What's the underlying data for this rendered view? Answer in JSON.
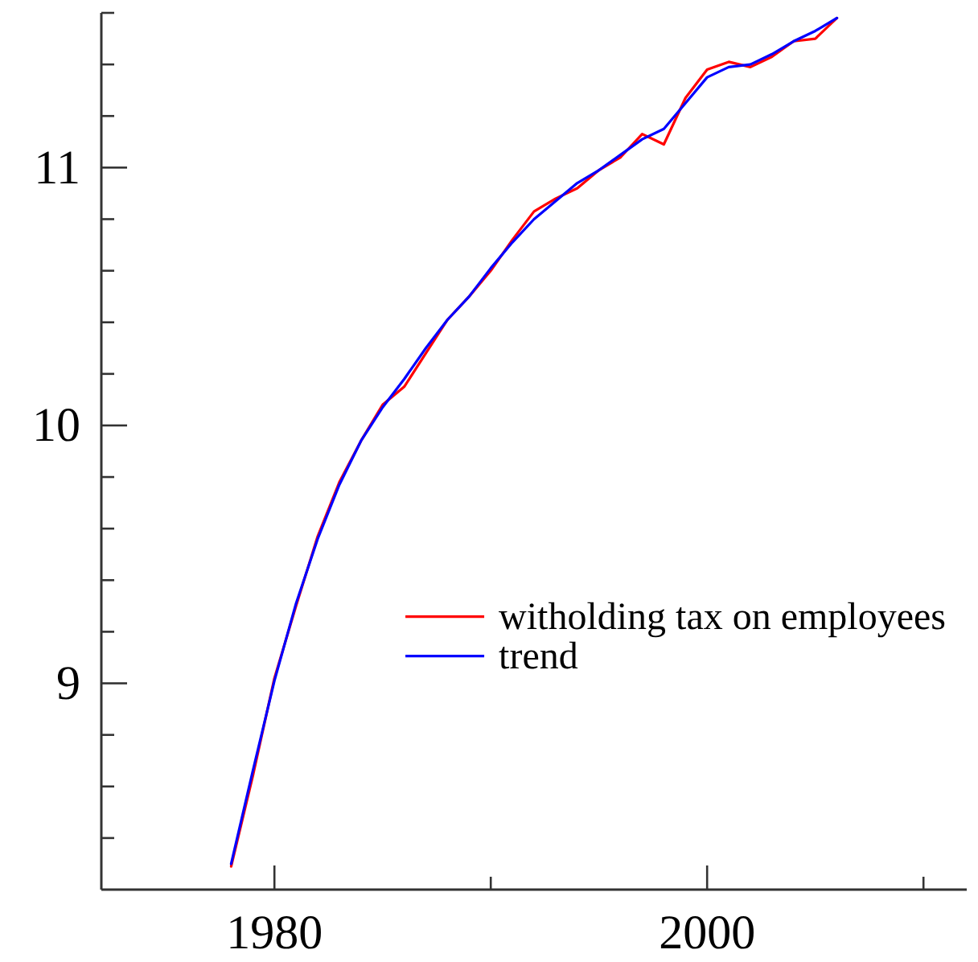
{
  "chart_data": {
    "type": "line",
    "x": [
      1978,
      1979,
      1980,
      1981,
      1982,
      1983,
      1984,
      1985,
      1986,
      1987,
      1988,
      1989,
      1990,
      1991,
      1992,
      1993,
      1994,
      1995,
      1996,
      1997,
      1998,
      1999,
      2000,
      2001,
      2002,
      2003,
      2004,
      2005,
      2006
    ],
    "series": [
      {
        "name": "witholding tax on employees",
        "color": "#ff0000",
        "values": [
          8.29,
          8.64,
          9.02,
          9.3,
          9.57,
          9.78,
          9.94,
          10.08,
          10.15,
          10.28,
          10.41,
          10.5,
          10.6,
          10.72,
          10.83,
          10.88,
          10.92,
          10.99,
          11.04,
          11.13,
          11.09,
          11.27,
          11.38,
          11.41,
          11.39,
          11.43,
          11.49,
          11.5,
          11.58
        ]
      },
      {
        "name": "trend",
        "color": "#0000ff",
        "values": [
          8.3,
          8.66,
          9.01,
          9.31,
          9.56,
          9.77,
          9.94,
          10.07,
          10.18,
          10.3,
          10.41,
          10.5,
          10.61,
          10.71,
          10.8,
          10.87,
          10.94,
          10.99,
          11.05,
          11.11,
          11.15,
          11.25,
          11.35,
          11.39,
          11.4,
          11.44,
          11.49,
          11.53,
          11.58
        ]
      }
    ],
    "xlim": [
      1972,
      2012
    ],
    "xticks": [
      1980,
      {
        "value": 1990,
        "label": null
      },
      2000,
      {
        "value": 2010,
        "label": null
      }
    ],
    "ylim": [
      8.2,
      11.6
    ],
    "yticks": [
      {
        "value": 8.4,
        "label": null
      },
      {
        "value": 8.6,
        "label": null
      },
      {
        "value": 8.8,
        "label": null
      },
      9,
      {
        "value": 9.2,
        "label": null
      },
      {
        "value": 9.4,
        "label": null
      },
      {
        "value": 9.6,
        "label": null
      },
      {
        "value": 9.8,
        "label": null
      },
      10,
      {
        "value": 10.2,
        "label": null
      },
      {
        "value": 10.4,
        "label": null
      },
      {
        "value": 10.6,
        "label": null
      },
      {
        "value": 10.8,
        "label": null
      },
      11,
      {
        "value": 11.2,
        "label": null
      },
      {
        "value": 11.4,
        "label": null
      },
      {
        "value": 11.6,
        "label": null
      }
    ],
    "grid": false,
    "legend": "bottom right",
    "line_style": "solid"
  }
}
